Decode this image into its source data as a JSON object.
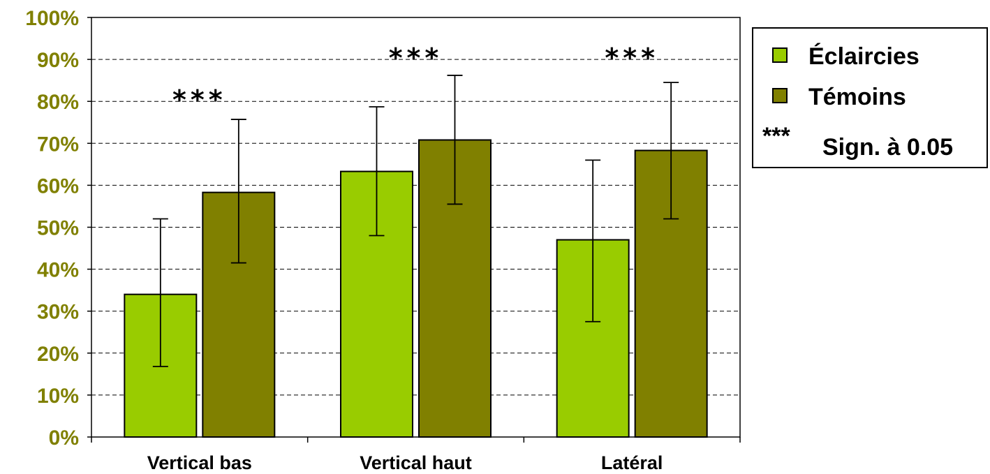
{
  "colors": {
    "eclaircies": "#99CC00",
    "temoins": "#808000",
    "tick_label": "#808000",
    "grid": "#000000",
    "axis": "#000000"
  },
  "chart_data": {
    "type": "bar",
    "categories": [
      "Vertical bas",
      "Vertical haut",
      "Latéral"
    ],
    "series": [
      {
        "name": "Éclaircies",
        "values": [
          34,
          63.3,
          47
        ],
        "error_low": [
          16.8,
          48,
          27.5
        ],
        "error_high": [
          52,
          78.7,
          66
        ]
      },
      {
        "name": "Témoins",
        "values": [
          58.3,
          70.8,
          68.3
        ],
        "error_low": [
          41.5,
          55.5,
          52
        ],
        "error_high": [
          75.7,
          86.2,
          84.5
        ]
      }
    ],
    "y_ticks": [
      "0%",
      "10%",
      "20%",
      "30%",
      "40%",
      "50%",
      "60%",
      "70%",
      "80%",
      "90%",
      "100%"
    ],
    "ylim": [
      0,
      100
    ],
    "grid": true,
    "significance_marks": [
      "***",
      "***",
      "***"
    ],
    "significance_levels": [
      80.5,
      90.5,
      90.5
    ],
    "legend": {
      "position": "right",
      "items": [
        "Éclaircies",
        "Témoins"
      ],
      "note_symbol": "***",
      "note_text": "Sign. à 0.05"
    }
  }
}
